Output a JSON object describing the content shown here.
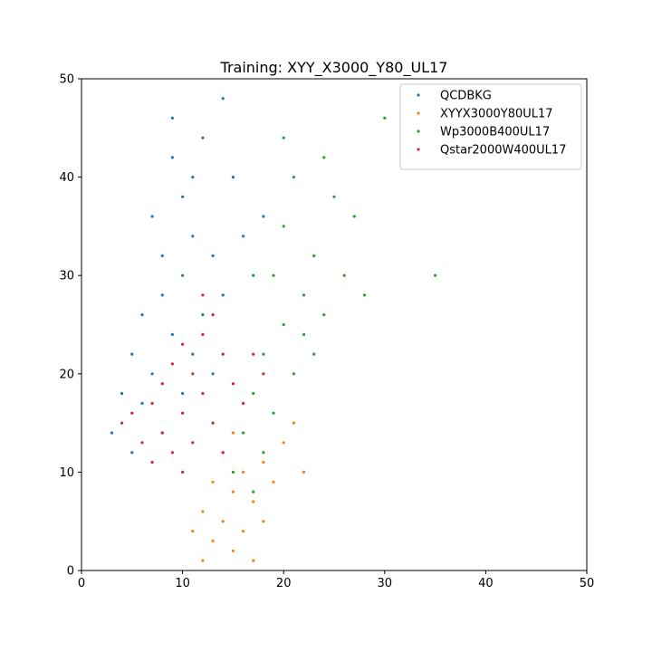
{
  "chart_data": {
    "type": "scatter",
    "title": "Training: XYY_X3000_Y80_UL17",
    "xlabel": "",
    "ylabel": "",
    "xlim": [
      0,
      50
    ],
    "ylim": [
      0,
      50
    ],
    "xticks": [
      0,
      10,
      20,
      30,
      40,
      50
    ],
    "yticks": [
      0,
      10,
      20,
      30,
      40,
      50
    ],
    "grid": false,
    "legend_position": "top-right",
    "series": [
      {
        "name": "QCDBKG",
        "color": "#1f77b4",
        "points": [
          [
            9,
            24
          ],
          [
            8,
            28
          ],
          [
            10,
            30
          ],
          [
            11,
            34
          ],
          [
            7,
            20
          ],
          [
            6,
            17
          ],
          [
            12,
            26
          ],
          [
            10,
            38
          ],
          [
            9,
            42
          ],
          [
            13,
            32
          ],
          [
            8,
            14
          ],
          [
            5,
            12
          ],
          [
            14,
            28
          ],
          [
            11,
            22
          ],
          [
            16,
            34
          ],
          [
            6,
            26
          ],
          [
            4,
            18
          ],
          [
            12,
            44
          ],
          [
            15,
            40
          ],
          [
            10,
            18
          ],
          [
            7,
            36
          ],
          [
            3,
            14
          ],
          [
            13,
            20
          ],
          [
            17,
            30
          ],
          [
            8,
            32
          ],
          [
            9,
            46
          ],
          [
            14,
            48
          ],
          [
            11,
            40
          ],
          [
            18,
            36
          ],
          [
            5,
            22
          ]
        ]
      },
      {
        "name": "XYYX3000Y80UL17",
        "color": "#ff7f0e",
        "points": [
          [
            15,
            8
          ],
          [
            14,
            5
          ],
          [
            16,
            10
          ],
          [
            13,
            3
          ],
          [
            17,
            7
          ],
          [
            12,
            6
          ],
          [
            18,
            11
          ],
          [
            15,
            2
          ],
          [
            16,
            4
          ],
          [
            19,
            9
          ],
          [
            14,
            12
          ],
          [
            20,
            13
          ],
          [
            13,
            9
          ],
          [
            17,
            1
          ],
          [
            21,
            15
          ],
          [
            11,
            4
          ],
          [
            22,
            10
          ],
          [
            15,
            14
          ],
          [
            18,
            5
          ],
          [
            12,
            1
          ]
        ]
      },
      {
        "name": "Wp3000B400UL17",
        "color": "#2ca02c",
        "points": [
          [
            20,
            25
          ],
          [
            18,
            22
          ],
          [
            22,
            28
          ],
          [
            19,
            30
          ],
          [
            21,
            20
          ],
          [
            17,
            18
          ],
          [
            23,
            32
          ],
          [
            20,
            35
          ],
          [
            24,
            26
          ],
          [
            18,
            12
          ],
          [
            16,
            14
          ],
          [
            25,
            38
          ],
          [
            22,
            24
          ],
          [
            19,
            16
          ],
          [
            26,
            30
          ],
          [
            21,
            40
          ],
          [
            23,
            22
          ],
          [
            27,
            36
          ],
          [
            20,
            44
          ],
          [
            15,
            10
          ],
          [
            28,
            28
          ],
          [
            24,
            42
          ],
          [
            30,
            46
          ],
          [
            35,
            30
          ],
          [
            17,
            8
          ]
        ]
      },
      {
        "name": "Qstar2000W400UL17",
        "color": "#d62728",
        "points": [
          [
            10,
            16
          ],
          [
            12,
            18
          ],
          [
            8,
            14
          ],
          [
            11,
            20
          ],
          [
            9,
            12
          ],
          [
            13,
            15
          ],
          [
            7,
            17
          ],
          [
            14,
            22
          ],
          [
            6,
            13
          ],
          [
            12,
            24
          ],
          [
            10,
            10
          ],
          [
            15,
            19
          ],
          [
            5,
            16
          ],
          [
            16,
            17
          ],
          [
            11,
            13
          ],
          [
            9,
            21
          ],
          [
            13,
            26
          ],
          [
            8,
            19
          ],
          [
            17,
            22
          ],
          [
            4,
            15
          ],
          [
            14,
            12
          ],
          [
            12,
            28
          ],
          [
            7,
            11
          ],
          [
            18,
            20
          ],
          [
            10,
            23
          ]
        ]
      }
    ]
  }
}
